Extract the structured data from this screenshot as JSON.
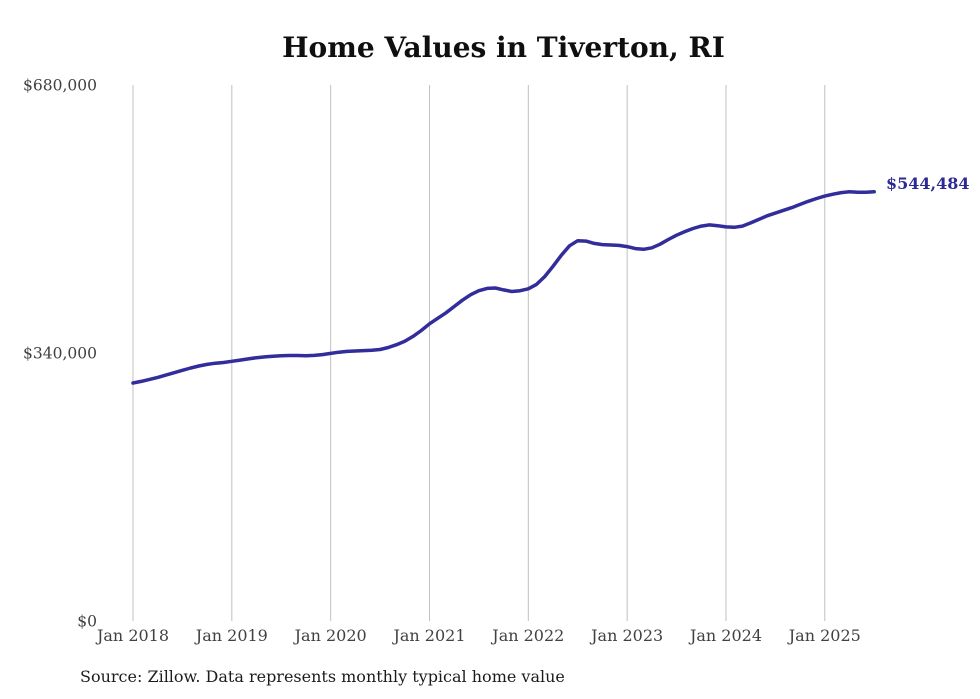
{
  "chart_data": {
    "type": "line",
    "title": "Home Values in Tiverton, RI",
    "source": "Source: Zillow. Data represents monthly typical home value",
    "end_label": "$544,484",
    "series_name": "Monthly typical home value",
    "ylim": [
      0,
      680000
    ],
    "grid": "vertical-only",
    "legend": "none",
    "line_color": "#322d9a",
    "end_label_color": "#2e2a93",
    "grid_color": "#c0c0c0",
    "tick_color": "#414141",
    "y_ticks": [
      {
        "value": 0,
        "label": "$0"
      },
      {
        "value": 340000,
        "label": "$340,000"
      },
      {
        "value": 680000,
        "label": "$680,000"
      }
    ],
    "x_tick_labels": [
      "Jan 2018",
      "Jan 2019",
      "Jan 2020",
      "Jan 2021",
      "Jan 2022",
      "Jan 2023",
      "Jan 2024",
      "Jan 2025"
    ],
    "x_tick_month_indices": [
      0,
      12,
      24,
      36,
      48,
      60,
      72,
      84
    ],
    "months": [
      "2018-01",
      "2018-02",
      "2018-03",
      "2018-04",
      "2018-05",
      "2018-06",
      "2018-07",
      "2018-08",
      "2018-09",
      "2018-10",
      "2018-11",
      "2018-12",
      "2019-01",
      "2019-02",
      "2019-03",
      "2019-04",
      "2019-05",
      "2019-06",
      "2019-07",
      "2019-08",
      "2019-09",
      "2019-10",
      "2019-11",
      "2019-12",
      "2020-01",
      "2020-02",
      "2020-03",
      "2020-04",
      "2020-05",
      "2020-06",
      "2020-07",
      "2020-08",
      "2020-09",
      "2020-10",
      "2020-11",
      "2020-12",
      "2021-01",
      "2021-02",
      "2021-03",
      "2021-04",
      "2021-05",
      "2021-06",
      "2021-07",
      "2021-08",
      "2021-09",
      "2021-10",
      "2021-11",
      "2021-12",
      "2022-01",
      "2022-02",
      "2022-03",
      "2022-04",
      "2022-05",
      "2022-06",
      "2022-07",
      "2022-08",
      "2022-09",
      "2022-10",
      "2022-11",
      "2022-12",
      "2023-01",
      "2023-02",
      "2023-03",
      "2023-04",
      "2023-05",
      "2023-06",
      "2023-07",
      "2023-08",
      "2023-09",
      "2023-10",
      "2023-11",
      "2023-12",
      "2024-01",
      "2024-02",
      "2024-03",
      "2024-04",
      "2024-05",
      "2024-06",
      "2024-07",
      "2024-08",
      "2024-09",
      "2024-10",
      "2024-11",
      "2024-12",
      "2025-01",
      "2025-02",
      "2025-03",
      "2025-04",
      "2025-05",
      "2025-06",
      "2025-07"
    ],
    "values": [
      302000,
      304000,
      306500,
      309000,
      312000,
      315000,
      318000,
      321000,
      323500,
      325500,
      327000,
      328000,
      329500,
      331000,
      332500,
      334000,
      335000,
      336000,
      336500,
      336800,
      336800,
      336500,
      337000,
      338000,
      339500,
      341000,
      342000,
      342500,
      343000,
      343500,
      344500,
      347000,
      350500,
      355000,
      361000,
      368500,
      377000,
      384000,
      391000,
      399000,
      407000,
      414000,
      419000,
      422000,
      422500,
      420000,
      418000,
      419000,
      421500,
      427000,
      437000,
      450000,
      464000,
      476000,
      482500,
      482000,
      479000,
      477500,
      477000,
      476500,
      475000,
      472500,
      471500,
      473500,
      478000,
      484000,
      489500,
      494000,
      498000,
      501000,
      502500,
      501500,
      500000,
      499500,
      501000,
      505000,
      509500,
      514000,
      517500,
      521000,
      524500,
      528500,
      532500,
      536000,
      539000,
      541500,
      543500,
      544500,
      544000,
      544000,
      544484
    ]
  }
}
